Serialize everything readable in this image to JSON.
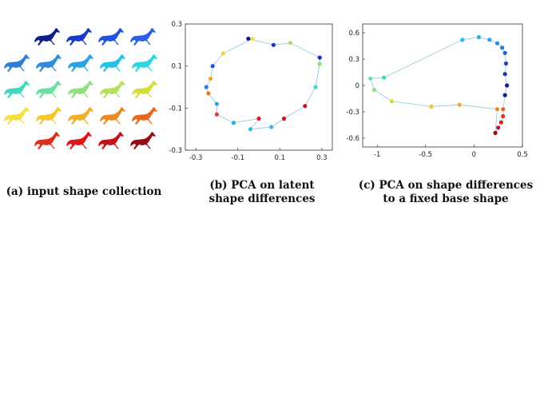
{
  "captions": {
    "a": "(a) input shape collection",
    "b": [
      "(b) PCA on latent",
      "shape differences"
    ],
    "c": [
      "(c) PCA on shape differences",
      "to a fixed base shape"
    ]
  },
  "horse_colors": [
    [
      "#0b1e8a",
      "#1b39c8",
      "#2450e0",
      "#2a5fe6"
    ],
    [
      "#2f7fd8",
      "#2d8ce0",
      "#2aa2e6",
      "#22c2e6",
      "#2ad7e0"
    ],
    [
      "#41d8c0",
      "#6be0a0",
      "#92e07c",
      "#b5e05c",
      "#d4dd3c"
    ],
    [
      "#f2e23a",
      "#f4c82c",
      "#f2ae24",
      "#ec8a22",
      "#e8661e"
    ],
    [
      "#e02c1a",
      "#e0141a",
      "#c8101a",
      "#9a0a12"
    ]
  ],
  "chart_data": [
    {
      "type": "scatter",
      "connected": true,
      "closed": true,
      "xlim": [
        -0.35,
        0.35
      ],
      "ylim": [
        -0.3,
        0.3
      ],
      "xticks": [
        "-0.3",
        "-0.1",
        "0.1",
        "0.3"
      ],
      "yticks": [
        "0.3",
        "0.1",
        "-0.1",
        "-0.3"
      ],
      "xtick_values": [
        -0.3,
        -0.1,
        0.1,
        0.3
      ],
      "ytick_values": [
        0.3,
        0.1,
        -0.1,
        -0.3
      ],
      "points": [
        {
          "x": -0.05,
          "y": 0.23,
          "color": "#0b1e8a"
        },
        {
          "x": 0.07,
          "y": 0.2,
          "color": "#1b39c8"
        },
        {
          "x": 0.15,
          "y": 0.21,
          "color": "#a8e05a"
        },
        {
          "x": 0.29,
          "y": 0.14,
          "color": "#1b2fb0"
        },
        {
          "x": 0.29,
          "y": 0.11,
          "color": "#8ee07a"
        },
        {
          "x": 0.27,
          "y": 0.0,
          "color": "#3cdcd0"
        },
        {
          "x": 0.22,
          "y": -0.09,
          "color": "#c8101a"
        },
        {
          "x": 0.12,
          "y": -0.15,
          "color": "#d4141c"
        },
        {
          "x": 0.06,
          "y": -0.19,
          "color": "#2cc0e0"
        },
        {
          "x": -0.04,
          "y": -0.2,
          "color": "#22c2e6"
        },
        {
          "x": 0.0,
          "y": -0.15,
          "color": "#de1c1a"
        },
        {
          "x": -0.12,
          "y": -0.17,
          "color": "#2ab0e0"
        },
        {
          "x": -0.2,
          "y": -0.13,
          "color": "#e8401e"
        },
        {
          "x": -0.2,
          "y": -0.08,
          "color": "#2aa2e6"
        },
        {
          "x": -0.24,
          "y": -0.03,
          "color": "#ec7a20"
        },
        {
          "x": -0.25,
          "y": 0.0,
          "color": "#2b7fd8"
        },
        {
          "x": -0.23,
          "y": 0.04,
          "color": "#f0a826"
        },
        {
          "x": -0.22,
          "y": 0.1,
          "color": "#2052d0"
        },
        {
          "x": -0.17,
          "y": 0.16,
          "color": "#e8d83a"
        },
        {
          "x": -0.03,
          "y": 0.23,
          "color": "#f2e23a"
        }
      ]
    },
    {
      "type": "scatter",
      "connected": true,
      "closed": false,
      "xlim": [
        -1.15,
        0.5
      ],
      "ylim": [
        -0.7,
        0.7
      ],
      "xticks": [
        "-1",
        "-0.5",
        "0",
        "0.5"
      ],
      "yticks": [
        "0.6",
        "0.3",
        "0",
        "-0.3",
        "-0.6"
      ],
      "xtick_values": [
        -1,
        -0.5,
        0,
        0.5
      ],
      "ytick_values": [
        0.6,
        0.3,
        0,
        -0.3,
        -0.6
      ],
      "points": [
        {
          "x": -0.12,
          "y": 0.52,
          "color": "#22c2e6"
        },
        {
          "x": 0.05,
          "y": 0.55,
          "color": "#2ab4e6"
        },
        {
          "x": 0.16,
          "y": 0.52,
          "color": "#2aa2e6"
        },
        {
          "x": 0.24,
          "y": 0.48,
          "color": "#2a8ce0"
        },
        {
          "x": 0.29,
          "y": 0.43,
          "color": "#2a7ad8"
        },
        {
          "x": 0.32,
          "y": 0.37,
          "color": "#2460d8"
        },
        {
          "x": 0.33,
          "y": 0.25,
          "color": "#1b45c8"
        },
        {
          "x": 0.32,
          "y": 0.13,
          "color": "#1b30b0"
        },
        {
          "x": 0.34,
          "y": 0.0,
          "color": "#0f1f9a"
        },
        {
          "x": 0.32,
          "y": -0.11,
          "color": "#0b1e8a"
        },
        {
          "x": 0.3,
          "y": -0.27,
          "color": "#e8661e"
        },
        {
          "x": 0.3,
          "y": -0.35,
          "color": "#e0301a"
        },
        {
          "x": 0.28,
          "y": -0.42,
          "color": "#d81a1a"
        },
        {
          "x": 0.25,
          "y": -0.48,
          "color": "#c8101a"
        },
        {
          "x": 0.22,
          "y": -0.54,
          "color": "#9a0a12"
        },
        {
          "x": 0.24,
          "y": -0.27,
          "color": "#ec8a22"
        },
        {
          "x": -0.15,
          "y": -0.22,
          "color": "#f2ae24"
        },
        {
          "x": -0.44,
          "y": -0.24,
          "color": "#f4c82c"
        },
        {
          "x": -0.85,
          "y": -0.18,
          "color": "#d4dd3c"
        },
        {
          "x": -1.03,
          "y": -0.05,
          "color": "#92e07c"
        },
        {
          "x": -1.07,
          "y": 0.08,
          "color": "#6be0a0"
        },
        {
          "x": -0.93,
          "y": 0.09,
          "color": "#41d8c0"
        },
        {
          "x": -0.12,
          "y": 0.52,
          "color": "#22c2e6"
        }
      ]
    }
  ]
}
